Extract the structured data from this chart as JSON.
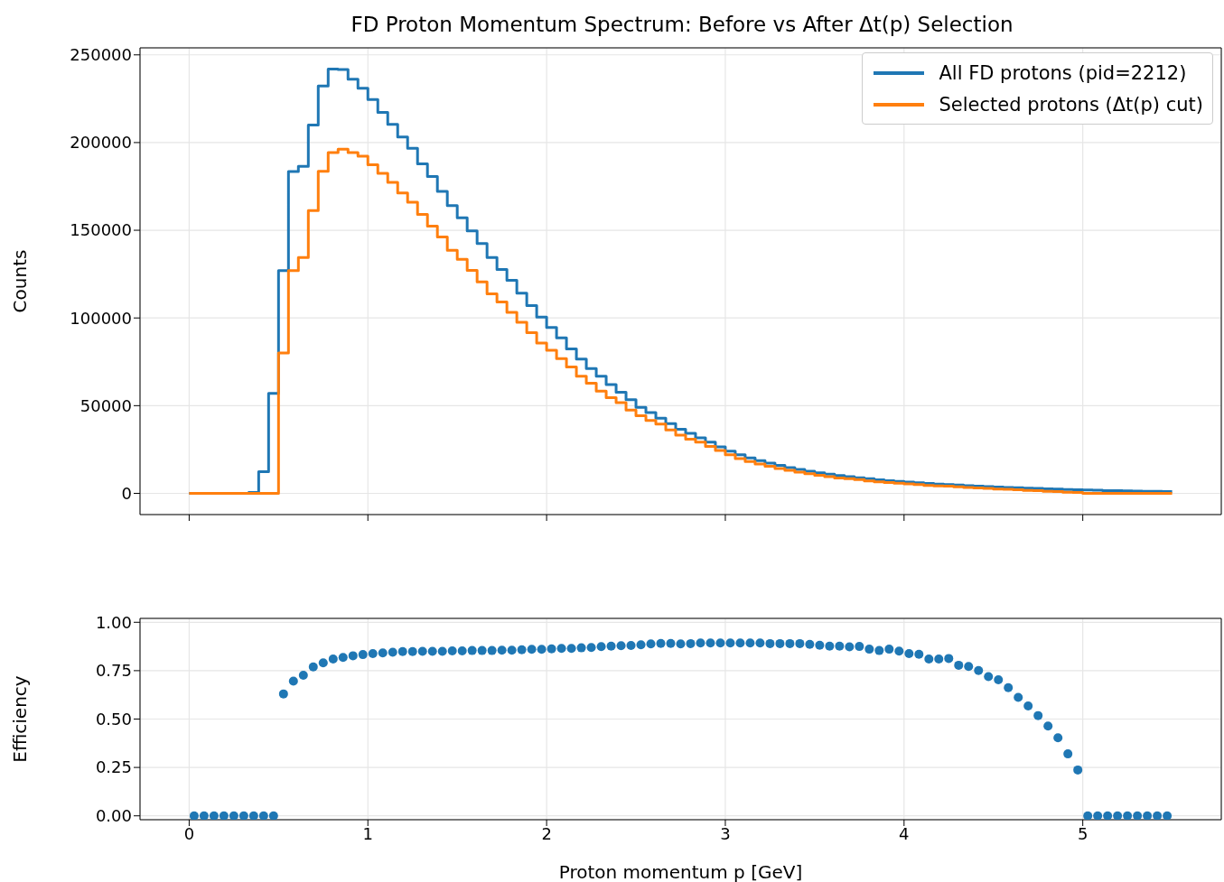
{
  "chart_data": [
    {
      "type": "histogram",
      "title": "FD Proton Momentum Spectrum: Before vs After Δt(p) Selection",
      "ylabel": "Counts",
      "bins": [
        0,
        0.0556,
        0.1111,
        0.1667,
        0.2222,
        0.2778,
        0.3333,
        0.3889,
        0.4444,
        0.5,
        0.5556,
        0.6111,
        0.6667,
        0.7222,
        0.7778,
        0.8333,
        0.8889,
        0.9444,
        1,
        1.0556,
        1.1111,
        1.1667,
        1.2222,
        1.2778,
        1.3333,
        1.3889,
        1.4444,
        1.5,
        1.5556,
        1.6111,
        1.6667,
        1.7222,
        1.7778,
        1.8333,
        1.8889,
        1.9444,
        2,
        2.0556,
        2.1111,
        2.1667,
        2.2222,
        2.2778,
        2.3333,
        2.3889,
        2.4444,
        2.5,
        2.5556,
        2.6111,
        2.6667,
        2.7222,
        2.7778,
        2.8333,
        2.8889,
        2.9444,
        3,
        3.0556,
        3.1111,
        3.1667,
        3.2222,
        3.2778,
        3.3333,
        3.3889,
        3.4444,
        3.5,
        3.5556,
        3.6111,
        3.6667,
        3.7222,
        3.7778,
        3.8333,
        3.8889,
        3.9444,
        4,
        4.0556,
        4.1111,
        4.1667,
        4.2222,
        4.2778,
        4.3333,
        4.3889,
        4.4444,
        4.5,
        4.5556,
        4.6111,
        4.6667,
        4.7222,
        4.7778,
        4.8333,
        4.8889,
        4.9444,
        5,
        5.0556,
        5.1111,
        5.1667,
        5.2222,
        5.2778,
        5.3333,
        5.3889,
        5.4444,
        5.5
      ],
      "series": [
        {
          "name": "All FD protons (pid=2212)",
          "color": "#1f77b4",
          "values": [
            0,
            0,
            0,
            0,
            0,
            0,
            500,
            12300,
            57000,
            127000,
            183500,
            186500,
            210000,
            232300,
            241900,
            241600,
            236100,
            231000,
            224500,
            217200,
            210400,
            203200,
            196700,
            187800,
            180600,
            172200,
            164100,
            157100,
            149700,
            142500,
            134500,
            127700,
            121500,
            114100,
            107000,
            100500,
            94600,
            88700,
            82400,
            76500,
            71200,
            66800,
            62000,
            57600,
            53400,
            49000,
            46000,
            42800,
            39800,
            36600,
            34200,
            31700,
            29200,
            26500,
            24000,
            22000,
            20200,
            18600,
            17200,
            15900,
            14700,
            13600,
            12600,
            11700,
            10900,
            10100,
            9500,
            8900,
            8300,
            7700,
            7200,
            6800,
            6400,
            6000,
            5600,
            5300,
            5000,
            4700,
            4400,
            4100,
            3900,
            3600,
            3400,
            3200,
            3000,
            2800,
            2600,
            2400,
            2200,
            2000,
            1900,
            1800,
            1600,
            1500,
            1400,
            1300,
            1200,
            1100,
            1000
          ]
        },
        {
          "name": "Selected protons (Δt(p) cut)",
          "color": "#ff7f0e",
          "values": [
            0,
            0,
            0,
            0,
            0,
            0,
            0,
            0,
            0,
            80000,
            127000,
            134400,
            161200,
            183600,
            194300,
            196200,
            194300,
            192200,
            187300,
            182500,
            177300,
            171300,
            166000,
            159100,
            152300,
            146200,
            138600,
            133400,
            127100,
            120500,
            113800,
            109100,
            103200,
            97500,
            91600,
            85700,
            81600,
            76800,
            72100,
            66800,
            62800,
            58300,
            54600,
            51700,
            47500,
            44300,
            41600,
            39500,
            36100,
            33200,
            30900,
            29200,
            26800,
            24500,
            22000,
            19800,
            18100,
            16700,
            15400,
            14200,
            13100,
            12100,
            11200,
            10300,
            9500,
            8800,
            8300,
            7800,
            7100,
            6600,
            6200,
            5800,
            5400,
            5000,
            4500,
            4300,
            4100,
            3700,
            3400,
            3100,
            2800,
            2500,
            2300,
            2000,
            1700,
            1500,
            1200,
            1000,
            700,
            500,
            0,
            0,
            0,
            0,
            0,
            0,
            0,
            0,
            0
          ]
        }
      ],
      "xlim": [
        -0.275,
        5.775
      ],
      "xticks": [
        0,
        1,
        2,
        3,
        4,
        5
      ],
      "ylim": [
        -12100,
        254000
      ],
      "yticks": [
        0,
        50000,
        100000,
        150000,
        200000,
        250000
      ],
      "tick_labels": "y",
      "grid": true,
      "legend": "top right",
      "line_style": "solid"
    },
    {
      "type": "scatter",
      "xlabel": "Proton momentum p [GeV]",
      "ylabel": "Efficiency",
      "color": "#1f77b4",
      "marker": "circle",
      "x": [
        0.0278,
        0.0833,
        0.1389,
        0.1944,
        0.25,
        0.3056,
        0.3611,
        0.4167,
        0.4722,
        0.5278,
        0.5833,
        0.6389,
        0.6944,
        0.75,
        0.8056,
        0.8611,
        0.9167,
        0.9722,
        1.0278,
        1.0833,
        1.1389,
        1.1944,
        1.25,
        1.3056,
        1.3611,
        1.4167,
        1.4722,
        1.5278,
        1.5833,
        1.6389,
        1.6944,
        1.75,
        1.8056,
        1.8611,
        1.9167,
        1.9722,
        2.0278,
        2.0833,
        2.1389,
        2.1944,
        2.25,
        2.3056,
        2.3611,
        2.4167,
        2.4722,
        2.5278,
        2.5833,
        2.6389,
        2.6944,
        2.75,
        2.8056,
        2.8611,
        2.9167,
        2.9722,
        3.0278,
        3.0833,
        3.1389,
        3.1944,
        3.25,
        3.3056,
        3.3611,
        3.4167,
        3.4722,
        3.5278,
        3.5833,
        3.6389,
        3.6944,
        3.75,
        3.8056,
        3.8611,
        3.9167,
        3.9722,
        4.0278,
        4.0833,
        4.1389,
        4.1944,
        4.25,
        4.3056,
        4.3611,
        4.4167,
        4.4722,
        4.5278,
        4.5833,
        4.6389,
        4.6944,
        4.75,
        4.8056,
        4.8611,
        4.9167,
        4.9722,
        5.0278,
        5.0833,
        5.1389,
        5.1944,
        5.25,
        5.3056,
        5.3611,
        5.4167,
        5.4722
      ],
      "values": [
        0,
        0,
        0,
        0,
        0,
        0,
        0,
        0,
        0,
        0.63,
        0.696,
        0.726,
        0.769,
        0.79,
        0.81,
        0.818,
        0.827,
        0.833,
        0.838,
        0.842,
        0.845,
        0.849,
        0.849,
        0.85,
        0.85,
        0.85,
        0.852,
        0.852,
        0.854,
        0.854,
        0.854,
        0.856,
        0.856,
        0.858,
        0.86,
        0.86,
        0.863,
        0.865,
        0.865,
        0.868,
        0.87,
        0.874,
        0.877,
        0.879,
        0.88,
        0.884,
        0.888,
        0.891,
        0.891,
        0.888,
        0.89,
        0.893,
        0.893,
        0.893,
        0.893,
        0.893,
        0.893,
        0.893,
        0.89,
        0.89,
        0.89,
        0.89,
        0.886,
        0.881,
        0.877,
        0.877,
        0.873,
        0.875,
        0.861,
        0.854,
        0.861,
        0.851,
        0.838,
        0.835,
        0.81,
        0.81,
        0.813,
        0.778,
        0.772,
        0.751,
        0.719,
        0.703,
        0.662,
        0.612,
        0.568,
        0.518,
        0.464,
        0.403,
        0.32,
        0.237,
        0,
        0,
        0,
        0,
        0,
        0,
        0,
        0,
        0
      ],
      "xlim": [
        -0.275,
        5.775
      ],
      "xticks": [
        0,
        1,
        2,
        3,
        4,
        5
      ],
      "ylim": [
        -0.02,
        1.02
      ],
      "yticks": [
        {
          "value": 0,
          "label": "0.00"
        },
        {
          "value": 0.25,
          "label": "0.25"
        },
        {
          "value": 0.5,
          "label": "0.50"
        },
        {
          "value": 0.75,
          "label": "0.75"
        },
        {
          "value": 1,
          "label": "1.00"
        }
      ],
      "grid": true
    }
  ]
}
